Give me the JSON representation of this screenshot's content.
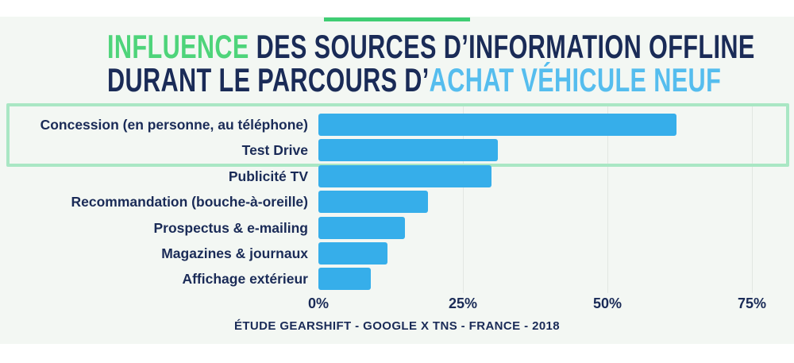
{
  "page": {
    "background": "#ffffff",
    "panel_color": "#f3f7f3"
  },
  "header": {
    "accent_bar_color": "#3fcd73",
    "title": {
      "line1": [
        {
          "text": "INFLUENCE ",
          "color": "#4ed47a"
        },
        {
          "text": "DES SOURCES D’INFORMATION OFFLINE",
          "color": "#1a2b57"
        }
      ],
      "line2": [
        {
          "text": "DURANT LE PARCOURS D’",
          "color": "#1a2b57"
        },
        {
          "text": "ACHAT VÉHICULE NEUF",
          "color": "#55bdee"
        }
      ]
    }
  },
  "chart_data": {
    "type": "bar",
    "orientation": "horizontal",
    "categories": [
      "Concession (en personne, au téléphone)",
      "Test Drive",
      "Publicité TV",
      "Recommandation (bouche-à-oreille)",
      "Prospectus & e-mailing",
      "Magazines & journaux",
      "Affichage extérieur"
    ],
    "values": [
      62,
      31,
      30,
      19,
      15,
      12,
      9
    ],
    "unit": "%",
    "xlim": [
      0,
      75
    ],
    "x_tick_values": [
      0,
      25,
      50,
      75
    ],
    "x_tick_labels": [
      "0%",
      "25%",
      "50%",
      "75%"
    ],
    "grid": true,
    "legend": "none",
    "bar_color": "#36aeea",
    "label_color": "#1a2b57",
    "gridline_color": "#e2e7e2",
    "highlight_box": {
      "border_color": "#a9e7c4",
      "rows": [
        0,
        1
      ],
      "note": "green frame around the two top sources"
    },
    "source": "ÉTUDE GEARSHIFT - GOOGLE X TNS - FRANCE - 2018"
  }
}
